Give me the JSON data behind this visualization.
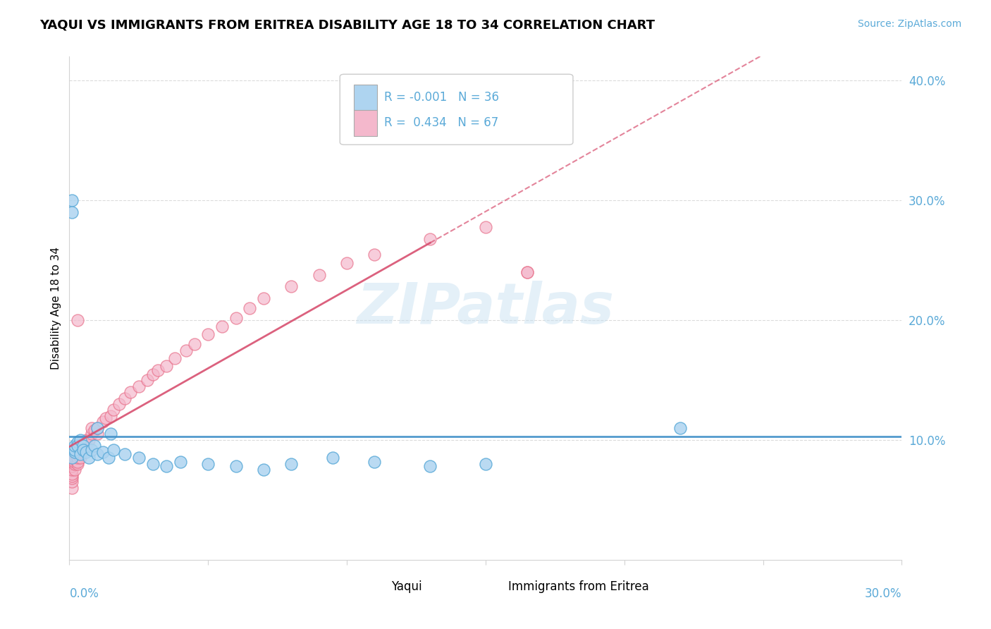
{
  "title": "YAQUI VS IMMIGRANTS FROM ERITREA DISABILITY AGE 18 TO 34 CORRELATION CHART",
  "source_text": "Source: ZipAtlas.com",
  "watermark": "ZIPatlas",
  "ylabel": "Disability Age 18 to 34",
  "legend_label_1": "Yaqui",
  "legend_label_2": "Immigrants from Eritrea",
  "R1": -0.001,
  "N1": 36,
  "R2": 0.434,
  "N2": 67,
  "color1": "#aed4f0",
  "color2": "#f4b8cc",
  "edge_color1": "#5baad8",
  "edge_color2": "#e8708a",
  "line_color1": "#4090c8",
  "line_color2": "#d85070",
  "xmin": 0.0,
  "xmax": 0.3,
  "ymin": 0.0,
  "ymax": 0.42,
  "yticks": [
    0.1,
    0.2,
    0.3,
    0.4
  ],
  "ytick_labels": [
    "10.0%",
    "20.0%",
    "30.0%",
    "40.0%"
  ],
  "yaqui_x": [
    0.001,
    0.001,
    0.001,
    0.002,
    0.002,
    0.002,
    0.003,
    0.003,
    0.004,
    0.004,
    0.005,
    0.005,
    0.006,
    0.007,
    0.008,
    0.009,
    0.01,
    0.012,
    0.014,
    0.016,
    0.02,
    0.025,
    0.03,
    0.035,
    0.04,
    0.05,
    0.06,
    0.07,
    0.08,
    0.095,
    0.11,
    0.13,
    0.15,
    0.01,
    0.015,
    0.22
  ],
  "yaqui_y": [
    0.3,
    0.29,
    0.085,
    0.09,
    0.092,
    0.095,
    0.098,
    0.095,
    0.1,
    0.088,
    0.095,
    0.092,
    0.09,
    0.085,
    0.092,
    0.095,
    0.088,
    0.09,
    0.085,
    0.092,
    0.088,
    0.085,
    0.08,
    0.078,
    0.082,
    0.08,
    0.078,
    0.075,
    0.08,
    0.085,
    0.082,
    0.078,
    0.08,
    0.11,
    0.105,
    0.11
  ],
  "eritrea_x": [
    0.001,
    0.001,
    0.001,
    0.001,
    0.001,
    0.001,
    0.001,
    0.001,
    0.001,
    0.001,
    0.001,
    0.001,
    0.001,
    0.002,
    0.002,
    0.002,
    0.002,
    0.002,
    0.002,
    0.003,
    0.003,
    0.003,
    0.003,
    0.003,
    0.003,
    0.004,
    0.004,
    0.004,
    0.005,
    0.005,
    0.006,
    0.006,
    0.007,
    0.008,
    0.008,
    0.009,
    0.01,
    0.01,
    0.012,
    0.013,
    0.015,
    0.016,
    0.018,
    0.02,
    0.022,
    0.025,
    0.028,
    0.03,
    0.032,
    0.035,
    0.038,
    0.042,
    0.045,
    0.05,
    0.055,
    0.06,
    0.065,
    0.07,
    0.08,
    0.09,
    0.1,
    0.11,
    0.13,
    0.15,
    0.165,
    0.003,
    0.165
  ],
  "eritrea_y": [
    0.06,
    0.065,
    0.068,
    0.07,
    0.072,
    0.075,
    0.078,
    0.08,
    0.082,
    0.085,
    0.088,
    0.09,
    0.092,
    0.075,
    0.08,
    0.082,
    0.085,
    0.088,
    0.09,
    0.08,
    0.082,
    0.085,
    0.088,
    0.09,
    0.095,
    0.085,
    0.09,
    0.095,
    0.092,
    0.095,
    0.095,
    0.1,
    0.1,
    0.105,
    0.11,
    0.108,
    0.105,
    0.11,
    0.115,
    0.118,
    0.12,
    0.125,
    0.13,
    0.135,
    0.14,
    0.145,
    0.15,
    0.155,
    0.158,
    0.162,
    0.168,
    0.175,
    0.18,
    0.188,
    0.195,
    0.202,
    0.21,
    0.218,
    0.228,
    0.238,
    0.248,
    0.255,
    0.268,
    0.278,
    0.24,
    0.2,
    0.24
  ]
}
